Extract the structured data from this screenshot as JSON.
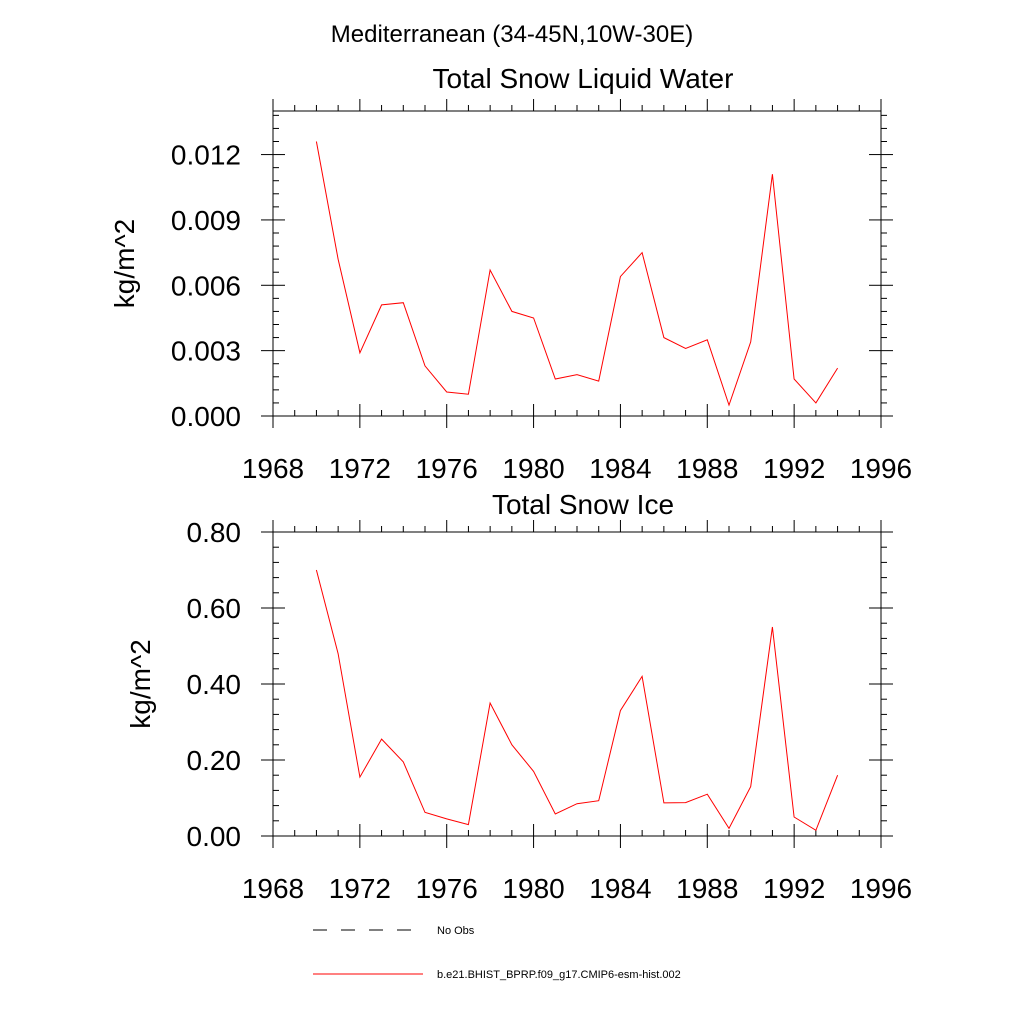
{
  "header": {
    "title": "Mediterranean (34-45N,10W-30E)"
  },
  "colors": {
    "model_line": "#ff0000",
    "obs_line": "#000000"
  },
  "legend": {
    "position": "bottom",
    "items": [
      {
        "label": "No Obs",
        "style": "dashed",
        "color": "#000000"
      },
      {
        "label": "b.e21.BHIST_BPRP.f09_g17.CMIP6-esm-hist.002",
        "style": "solid",
        "color": "#ff0000"
      }
    ]
  },
  "chart_data": [
    {
      "type": "line",
      "title": "Total Snow Liquid Water",
      "xlabel": "",
      "ylabel": "kg/m^2",
      "xlim": [
        1968,
        1996
      ],
      "ylim": [
        0,
        0.014
      ],
      "xticks": [
        1968,
        1972,
        1976,
        1980,
        1984,
        1988,
        1992,
        1996
      ],
      "xtick_labels": [
        "1968",
        "1972",
        "1976",
        "1980",
        "1984",
        "1988",
        "1992",
        "1996"
      ],
      "yticks": [
        0,
        0.003,
        0.006,
        0.009,
        0.012
      ],
      "ytick_labels": [
        "0.000",
        "0.003",
        "0.006",
        "0.009",
        "0.012"
      ],
      "grid": false,
      "series": [
        {
          "name": "b.e21.BHIST_BPRP.f09_g17.CMIP6-esm-hist.002",
          "color": "#ff0000",
          "x": [
            1970,
            1971,
            1972,
            1973,
            1974,
            1975,
            1976,
            1977,
            1978,
            1979,
            1980,
            1981,
            1982,
            1983,
            1984,
            1985,
            1986,
            1987,
            1988,
            1989,
            1990,
            1991,
            1992,
            1993,
            1994
          ],
          "y": [
            0.0126,
            0.0072,
            0.0029,
            0.0051,
            0.0052,
            0.0023,
            0.0011,
            0.001,
            0.0067,
            0.0048,
            0.0045,
            0.0017,
            0.0019,
            0.0016,
            0.0064,
            0.0075,
            0.0036,
            0.0031,
            0.0035,
            0.0005,
            0.0034,
            0.0111,
            0.0017,
            0.0006,
            0.0022
          ]
        }
      ]
    },
    {
      "type": "line",
      "title": "Total Snow Ice",
      "xlabel": "",
      "ylabel": "kg/m^2",
      "xlim": [
        1968,
        1996
      ],
      "ylim": [
        0,
        0.8
      ],
      "xticks": [
        1968,
        1972,
        1976,
        1980,
        1984,
        1988,
        1992,
        1996
      ],
      "xtick_labels": [
        "1968",
        "1972",
        "1976",
        "1980",
        "1984",
        "1988",
        "1992",
        "1996"
      ],
      "yticks": [
        0,
        0.2,
        0.4,
        0.6,
        0.8
      ],
      "ytick_labels": [
        "0.00",
        "0.20",
        "0.40",
        "0.60",
        "0.80"
      ],
      "grid": false,
      "series": [
        {
          "name": "b.e21.BHIST_BPRP.f09_g17.CMIP6-esm-hist.002",
          "color": "#ff0000",
          "x": [
            1970,
            1971,
            1972,
            1973,
            1974,
            1975,
            1976,
            1977,
            1978,
            1979,
            1980,
            1981,
            1982,
            1983,
            1984,
            1985,
            1986,
            1987,
            1988,
            1989,
            1990,
            1991,
            1992,
            1993,
            1994
          ],
          "y": [
            0.7,
            0.48,
            0.155,
            0.255,
            0.195,
            0.062,
            0.045,
            0.03,
            0.35,
            0.24,
            0.17,
            0.058,
            0.085,
            0.093,
            0.33,
            0.42,
            0.087,
            0.088,
            0.11,
            0.02,
            0.13,
            0.55,
            0.05,
            0.015,
            0.16
          ]
        }
      ]
    }
  ]
}
